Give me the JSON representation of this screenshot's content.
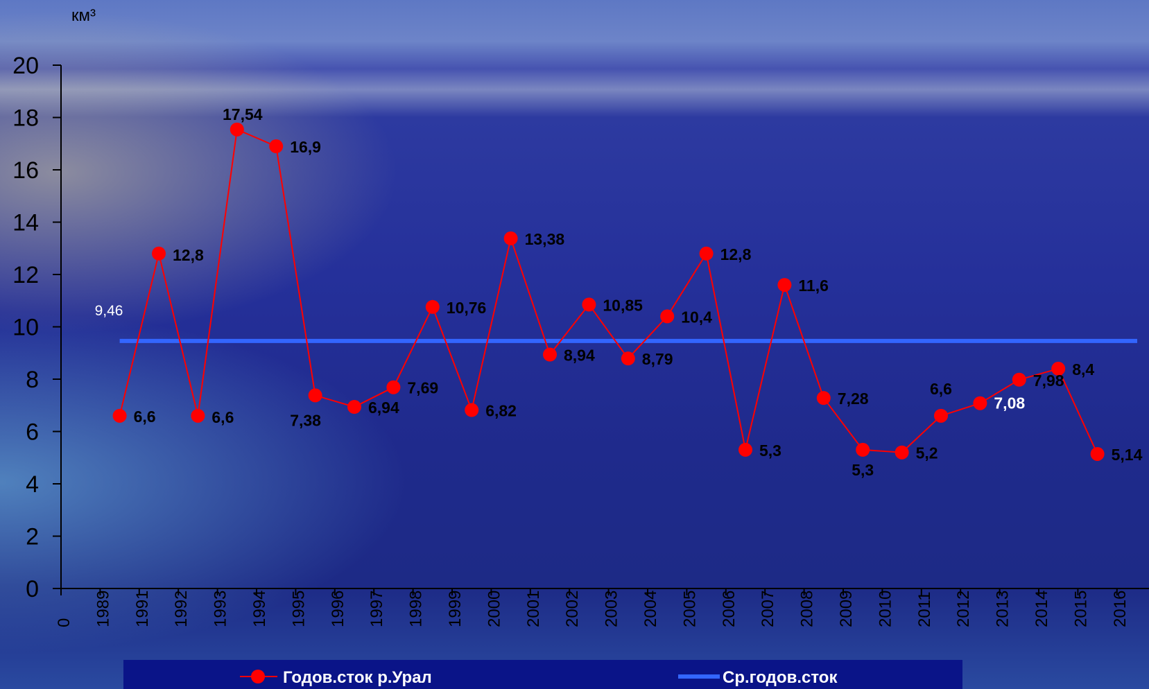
{
  "chart_data": {
    "type": "line",
    "ylabel": "км³",
    "ylim": [
      0,
      20
    ],
    "yticks": [
      "0",
      "2",
      "4",
      "6",
      "8",
      "10",
      "12",
      "14",
      "16",
      "18",
      "20"
    ],
    "x_tick_labels": [
      "0",
      "1989",
      "1991",
      "1992",
      "1993",
      "1994",
      "1995",
      "1996",
      "1997",
      "1998",
      "1999",
      "2000",
      "2001",
      "2002",
      "2003",
      "2004",
      "2005",
      "2006",
      "2007",
      "2008",
      "2009",
      "2010",
      "2011",
      "2012",
      "2013",
      "2014",
      "2015",
      "2016"
    ],
    "grid": false,
    "legend_position": "bottom",
    "series": [
      {
        "name": "Годов.сток р.Урал",
        "color": "#ff0000",
        "values": [
          6.6,
          12.8,
          6.6,
          17.54,
          16.9,
          7.38,
          6.94,
          7.69,
          10.76,
          6.82,
          13.38,
          8.94,
          10.85,
          8.79,
          10.4,
          12.8,
          5.3,
          11.6,
          7.28,
          5.3,
          5.2,
          6.6,
          7.08,
          7.98,
          8.4,
          5.14
        ],
        "labels": [
          "6,6",
          "12,8",
          "6,6",
          "17,54",
          "16,9",
          "7,38",
          "6,94",
          "7,69",
          "10,76",
          "6,82",
          "13,38",
          "8,94",
          "10,85",
          "8,79",
          "10,4",
          "12,8",
          "5,3",
          "11,6",
          "7,28",
          "5,3",
          "5,2",
          "6,6",
          "7,08",
          "7,98",
          "8,4",
          "5,14"
        ]
      },
      {
        "name": "Ср.годов.сток",
        "color": "#3366ff",
        "value": 9.46,
        "label": "9,46"
      }
    ]
  }
}
